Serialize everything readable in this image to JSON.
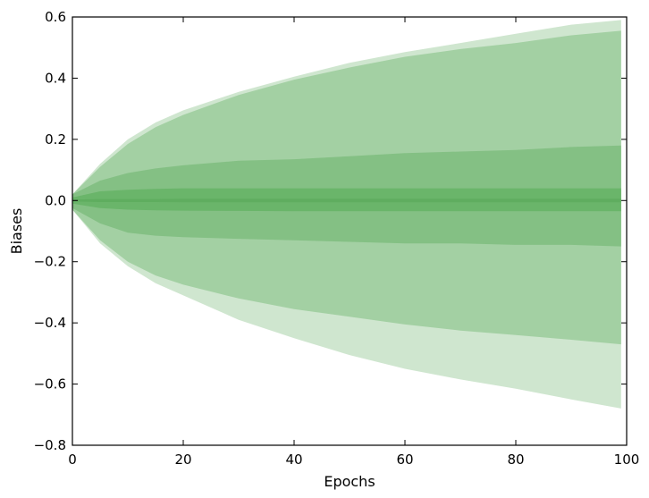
{
  "chart_data": {
    "type": "area",
    "title": "",
    "xlabel": "Epochs",
    "ylabel": "Biases",
    "xlim": [
      0,
      100
    ],
    "ylim": [
      -0.8,
      0.6
    ],
    "x_ticks": [
      0,
      20,
      40,
      60,
      80,
      100
    ],
    "y_ticks": [
      -0.8,
      -0.6,
      -0.4,
      -0.2,
      0.0,
      0.2,
      0.4,
      0.6
    ],
    "x_tick_labels": [
      "0",
      "20",
      "40",
      "60",
      "80",
      "100"
    ],
    "y_tick_labels": [
      "−0.8",
      "−0.6",
      "−0.4",
      "−0.2",
      "0.0",
      "0.2",
      "0.4",
      "0.6"
    ],
    "grid": false,
    "x": [
      0,
      5,
      10,
      15,
      20,
      30,
      40,
      50,
      60,
      70,
      80,
      90,
      99
    ],
    "bands": [
      {
        "color": "#cfe6cf",
        "upper": [
          0.02,
          0.12,
          0.2,
          0.255,
          0.295,
          0.355,
          0.405,
          0.45,
          0.485,
          0.515,
          0.545,
          0.575,
          0.59
        ],
        "lower": [
          -0.03,
          -0.14,
          -0.215,
          -0.27,
          -0.31,
          -0.39,
          -0.45,
          -0.505,
          -0.55,
          -0.585,
          -0.615,
          -0.65,
          -0.68
        ]
      },
      {
        "color": "#a3d0a3",
        "upper": [
          0.02,
          0.11,
          0.185,
          0.24,
          0.28,
          0.345,
          0.395,
          0.435,
          0.47,
          0.495,
          0.515,
          0.54,
          0.555
        ],
        "lower": [
          -0.03,
          -0.13,
          -0.2,
          -0.245,
          -0.275,
          -0.32,
          -0.355,
          -0.38,
          -0.405,
          -0.425,
          -0.44,
          -0.455,
          -0.47
        ]
      },
      {
        "color": "#84c084",
        "upper": [
          0.02,
          0.065,
          0.09,
          0.105,
          0.115,
          0.13,
          0.135,
          0.145,
          0.155,
          0.16,
          0.165,
          0.175,
          0.18
        ],
        "lower": [
          -0.025,
          -0.075,
          -0.105,
          -0.115,
          -0.12,
          -0.125,
          -0.13,
          -0.135,
          -0.14,
          -0.14,
          -0.145,
          -0.145,
          -0.15
        ]
      },
      {
        "color": "#6ab56a",
        "upper": [
          0.01,
          0.03,
          0.035,
          0.038,
          0.04,
          0.04,
          0.04,
          0.04,
          0.04,
          0.04,
          0.04,
          0.04,
          0.04
        ],
        "lower": [
          -0.01,
          -0.025,
          -0.03,
          -0.032,
          -0.033,
          -0.034,
          -0.035,
          -0.035,
          -0.035,
          -0.035,
          -0.035,
          -0.035,
          -0.035
        ]
      },
      {
        "color": "#5fad5f",
        "upper": [
          0.003,
          0.005,
          0.005,
          0.005,
          0.006,
          0.006,
          0.006,
          0.006,
          0.006,
          0.006,
          0.006,
          0.006,
          0.006
        ],
        "lower": [
          -0.003,
          -0.005,
          -0.005,
          -0.005,
          -0.006,
          -0.006,
          -0.006,
          -0.006,
          -0.006,
          -0.006,
          -0.006,
          -0.006,
          -0.006
        ]
      }
    ]
  }
}
